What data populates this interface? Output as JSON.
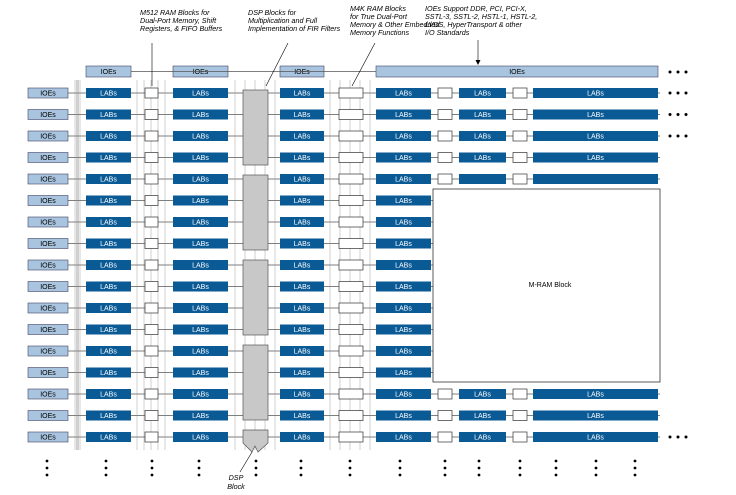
{
  "annotations": {
    "m512": [
      "M512 RAM Blocks for",
      "Dual-Port Memory, Shift",
      "Registers, & FIFO Buffers"
    ],
    "dsp": [
      "DSP Blocks for",
      "Multiplication and Full",
      "Implementation of FIR Filters"
    ],
    "m4k": [
      "M4K RAM Blocks",
      "for True Dual-Port",
      "Memory & Other Embedded",
      "Memory Functions"
    ],
    "ioe": [
      "IOEs Support DDR, PCI, PCI-X,",
      "SSTL-3, SSTL-2, HSTL-1, HSTL-2,",
      "LVDS, HyperTransport & other",
      "I/O Standards"
    ]
  },
  "blocks": {
    "ioe": "IOEs",
    "lab": "LABs",
    "mram": "M-RAM Block",
    "dsp": [
      "DSP",
      "Block"
    ]
  }
}
